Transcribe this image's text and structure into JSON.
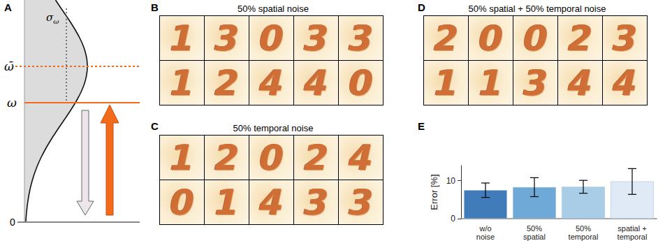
{
  "panel_labels": [
    "A",
    "B",
    "C",
    "D",
    "E"
  ],
  "panel_a": {
    "mean_label": "ω̄",
    "sigma_label": {
      "base": "σ",
      "sub": "ω"
    },
    "threshold_label": "ω",
    "zero_label": 0
  },
  "panel_b": {
    "title": "50% spatial noise",
    "digits": [
      [
        1,
        3,
        0,
        3,
        3
      ],
      [
        1,
        2,
        4,
        4,
        0
      ]
    ]
  },
  "panel_c": {
    "title": "50% temporal noise",
    "digits": [
      [
        1,
        2,
        0,
        2,
        4
      ],
      [
        0,
        1,
        4,
        3,
        3
      ]
    ]
  },
  "panel_d": {
    "title": "50% spatial + 50% temporal noise",
    "digits": [
      [
        2,
        0,
        0,
        2,
        3
      ],
      [
        1,
        1,
        3,
        4,
        4
      ]
    ]
  },
  "chart_data": {
    "type": "bar",
    "categories": [
      "w/o\nnoise",
      "50%\nspatial",
      "50%\ntemporal",
      "spatial +\ntemporal"
    ],
    "values": [
      7.5,
      8.3,
      8.4,
      9.8
    ],
    "errors": [
      1.9,
      2.5,
      1.7,
      3.4
    ],
    "colors": [
      "#3f7cb9",
      "#6ea9d8",
      "#a9cce7",
      "#dfeaf6"
    ],
    "ylabel": "Error [%]",
    "ylim": [
      0,
      14
    ],
    "yticks": [
      0,
      10
    ],
    "grid": false
  }
}
